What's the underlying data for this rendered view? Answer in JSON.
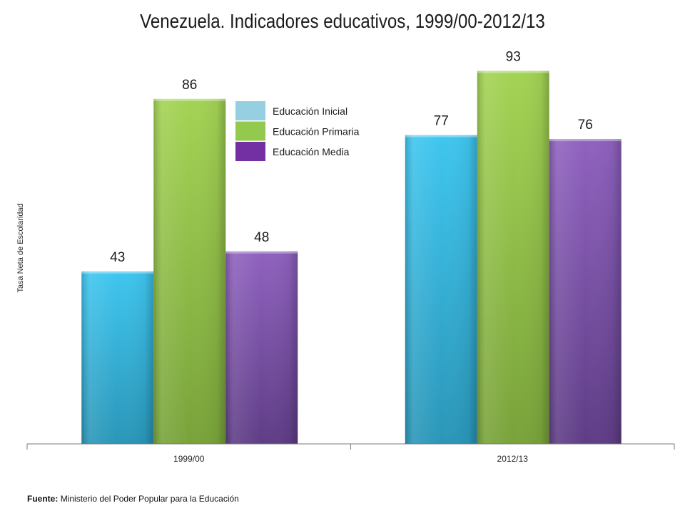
{
  "chart_data": {
    "type": "bar",
    "title": "Venezuela. Indicadores educativos, 1999/00-2012/13",
    "xlabel": "",
    "ylabel": "Tasa Neta de Escolaridad",
    "categories": [
      "1999/00",
      "2012/13"
    ],
    "series": [
      {
        "name": "Educación Inicial",
        "values": [
          43,
          77
        ],
        "color": "#38bde6"
      },
      {
        "name": "Educación Primaria",
        "values": [
          86,
          93
        ],
        "color": "#95c84a"
      },
      {
        "name": "Educación Media",
        "values": [
          48,
          76
        ],
        "color": "#8458b3"
      }
    ],
    "legend_swatch_colors": [
      "#96cfe0",
      "#93c94f",
      "#7330a2"
    ],
    "ylim": [
      0,
      100
    ],
    "grid": false,
    "legend_position": "top-center",
    "data_labels": true
  },
  "source": {
    "label": "Fuente:",
    "text": "Ministerio del Poder Popular para la Educación"
  }
}
